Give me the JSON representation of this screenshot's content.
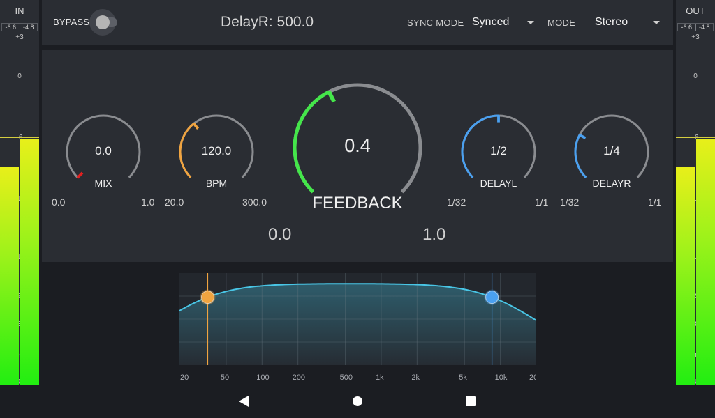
{
  "meters": {
    "in": {
      "title": "IN",
      "peak_left": "-6.6",
      "peak_right": "-4.8",
      "scale": [
        "+3",
        "0",
        "-6",
        "-12",
        "-18",
        "-24",
        "-30",
        "-36",
        "-42"
      ],
      "level_left": 0.565,
      "level_right": 0.64,
      "color_top": "#e8ef1a",
      "color_bottom": "#22ee11"
    },
    "out": {
      "title": "OUT",
      "peak_left": "-6.6",
      "peak_right": "-4.8",
      "scale": [
        "+3",
        "0",
        "-6",
        "-12",
        "-18",
        "-24",
        "-30",
        "-36",
        "-42"
      ],
      "level_left": 0.565,
      "level_right": 0.64,
      "color_top": "#e8ef1a",
      "color_bottom": "#22ee11"
    }
  },
  "header": {
    "bypass_label": "BYPASS",
    "bypass_on": false,
    "value_display": "DelayR: 500.0",
    "sync_mode_label": "SYNC MODE",
    "sync_mode_value": "Synced",
    "mode_label": "MODE",
    "mode_value": "Stereo"
  },
  "knobs": {
    "mix": {
      "label": "MIX",
      "value": "0.0",
      "min": "0.0",
      "max": "1.0",
      "fraction": 0.0,
      "color": "#e02020"
    },
    "bpm": {
      "label": "BPM",
      "value": "120.0",
      "min": "20.0",
      "max": "300.0",
      "fraction": 0.357,
      "color": "#f0a440"
    },
    "feedback": {
      "label": "FEEDBACK",
      "value": "0.4",
      "min": "0.0",
      "max": "1.0",
      "fraction": 0.4,
      "color": "#44e64a"
    },
    "delayl": {
      "label": "DELAYL",
      "value": "1/2",
      "min": "1/32",
      "max": "1/1",
      "fraction": 0.5,
      "color": "#4aa0f0"
    },
    "delayr": {
      "label": "DELAYR",
      "value": "1/4",
      "min": "1/32",
      "max": "1/1",
      "fraction": 0.27,
      "color": "#4aa0f0"
    }
  },
  "eq": {
    "freq_labels": [
      "20",
      "50",
      "100",
      "200",
      "500",
      "1k",
      "2k",
      "5k",
      "10k",
      "20k"
    ],
    "low_cut_hz": 35,
    "high_cut_hz": 8500,
    "low_color": "#f0a440",
    "high_color": "#4aa0f0",
    "curve_color": "#49c6e6"
  },
  "nav": {
    "back": "back-icon",
    "home": "home-icon",
    "recents": "recents-icon"
  }
}
